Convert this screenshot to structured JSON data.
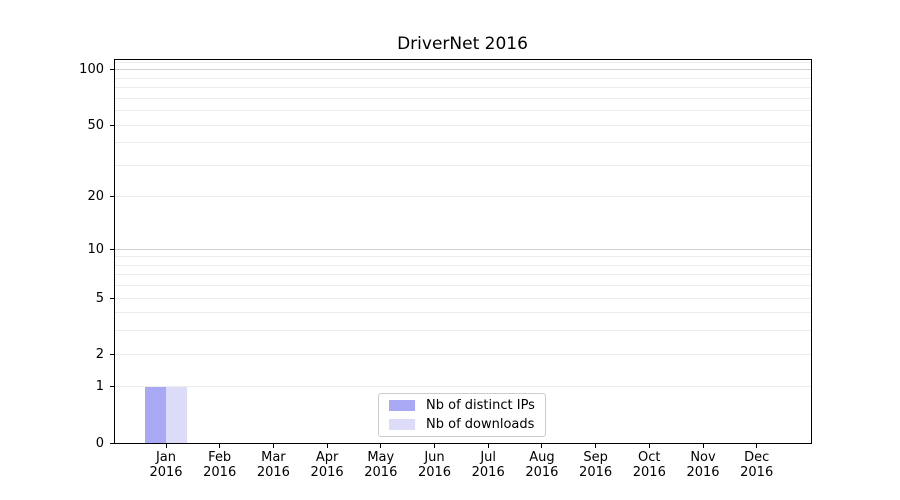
{
  "chart_data": {
    "type": "bar",
    "title": "DriverNet 2016",
    "categories": [
      "Jan 2016",
      "Feb 2016",
      "Mar 2016",
      "Apr 2016",
      "May 2016",
      "Jun 2016",
      "Jul 2016",
      "Aug 2016",
      "Sep 2016",
      "Oct 2016",
      "Nov 2016",
      "Dec 2016"
    ],
    "series": [
      {
        "name": "Nb of distinct IPs",
        "color": "#a8a8f5",
        "values": [
          1,
          0,
          0,
          0,
          0,
          0,
          0,
          0,
          0,
          0,
          0,
          0
        ]
      },
      {
        "name": "Nb of downloads",
        "color": "#dcdcf8",
        "values": [
          1,
          0,
          0,
          0,
          0,
          0,
          0,
          0,
          0,
          0,
          0,
          0
        ]
      }
    ],
    "xlabel": "",
    "ylabel": "",
    "yscale": "log10(1+y)",
    "ylim": [
      0,
      113
    ],
    "yticks": [
      0,
      1,
      2,
      5,
      10,
      20,
      50,
      100
    ],
    "grid": {
      "minor": [
        1,
        2,
        3,
        4,
        5,
        6,
        7,
        8,
        9,
        20,
        30,
        40,
        50,
        60,
        70,
        80,
        90,
        110
      ],
      "major": [
        10,
        100
      ],
      "minor_color": "#ececec",
      "major_color": "#d0d0d0"
    },
    "legend": {
      "position": "lower center",
      "border_color": "#cccccc"
    }
  }
}
